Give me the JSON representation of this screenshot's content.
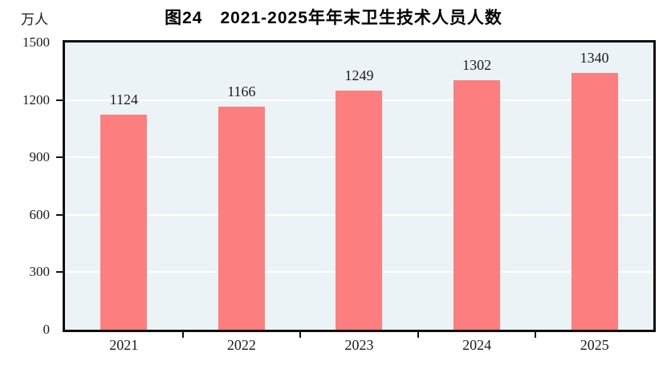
{
  "chart_data": {
    "type": "bar",
    "title": "图24　2021-2025年年末卫生技术人员人数",
    "unit_label": "万人",
    "categories": [
      "2021",
      "2022",
      "2023",
      "2024",
      "2025"
    ],
    "values": [
      1124,
      1166,
      1249,
      1302,
      1340
    ],
    "ylim": [
      0,
      1500
    ],
    "yticks": [
      0,
      300,
      600,
      900,
      1200,
      1500
    ],
    "grid": "horizontal",
    "legend": "none",
    "colors": {
      "bar": "#fd7e7e",
      "plot_background": "#ecf3f7",
      "gridline": "#ffffff",
      "axis": "#0f0f0f",
      "text": "#1a1a1a"
    }
  }
}
